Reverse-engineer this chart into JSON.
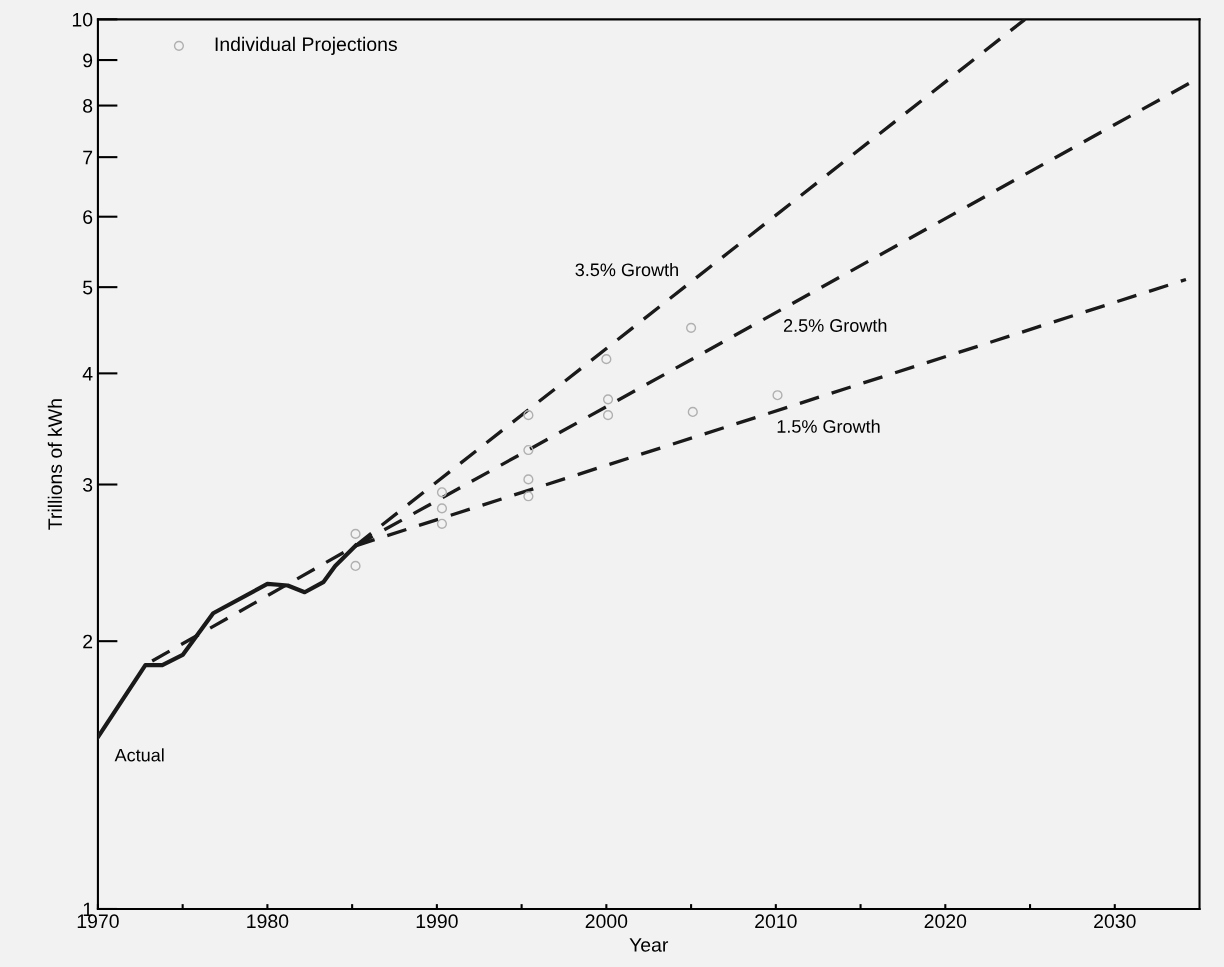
{
  "chart_data": {
    "type": "line",
    "xlabel": "Year",
    "ylabel": "Trillions of kWh",
    "log": "y",
    "xlim": [
      1970,
      2035
    ],
    "ylim": [
      1,
      10
    ],
    "xticks": [
      1970,
      {
        "value": 1975,
        "label": null
      },
      1980,
      {
        "value": 1985,
        "label": null
      },
      1990,
      {
        "value": 1995,
        "label": null
      },
      2000,
      {
        "value": 2005,
        "label": null
      },
      2010,
      {
        "value": 2015,
        "label": null
      },
      2020,
      {
        "value": 2025,
        "label": null
      },
      2030
    ],
    "yticks": [
      1,
      2,
      3,
      4,
      5,
      6,
      7,
      8,
      9,
      10
    ],
    "grid": false,
    "legend": "top left",
    "series": [
      {
        "name": "Actual",
        "color": "#1a1a1a",
        "line_style": "solid",
        "x": [
          1970,
          1972.8,
          1973.8,
          1975,
          1976.8,
          1980,
          1981.2,
          1982.2,
          1983.3,
          1984,
          1985.2
        ],
        "values": [
          1.56,
          1.88,
          1.88,
          1.93,
          2.15,
          2.32,
          2.31,
          2.27,
          2.33,
          2.43,
          2.56
        ]
      },
      {
        "name": "3.5% Growth",
        "color": "#1a1a1a",
        "line_style": "dashed",
        "x": [
          1985.2,
          2024.7
        ],
        "values": [
          2.56,
          10
        ]
      },
      {
        "name": "2.5% Growth",
        "color": "#1a1a1a",
        "line_style": "dashed",
        "x": [
          1973.2,
          1985.2,
          2035
        ],
        "values": [
          1.9,
          2.56,
          8.6
        ]
      },
      {
        "name": "1.5% Growth",
        "color": "#1a1a1a",
        "line_style": "dashed",
        "x": [
          1985.2,
          2034.2
        ],
        "values": [
          2.56,
          5.1
        ]
      },
      {
        "type": "scatter",
        "name": "Individual Projections",
        "color": "#b0b0b0",
        "marker": "circle",
        "x": [
          1985.2,
          1985.2,
          1990.3,
          1990.3,
          1990.3,
          1995.4,
          1995.4,
          1995.4,
          1995.4,
          2000.1,
          2000.1,
          2000,
          2005.1,
          2005,
          2010.1
        ],
        "values": [
          2.43,
          2.64,
          2.82,
          2.71,
          2.94,
          3.04,
          2.91,
          3.59,
          3.28,
          3.74,
          3.59,
          4.15,
          3.62,
          4.5,
          3.78
        ]
      }
    ]
  }
}
